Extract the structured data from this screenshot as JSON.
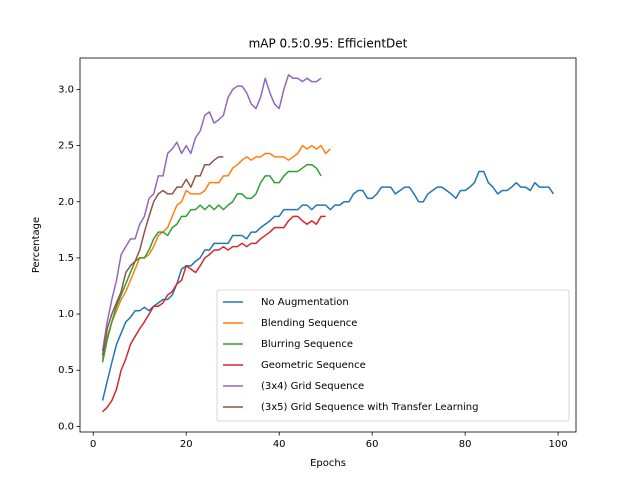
{
  "chart_data": {
    "type": "line",
    "title": "mAP 0.5:0.95: EfficientDet",
    "x_label": "Epochs",
    "y_label": "Percentage",
    "xlim": [
      -2.85,
      103.85
    ],
    "ylim": [
      -0.05,
      3.28
    ],
    "xticks": [
      0,
      20,
      40,
      60,
      80,
      100
    ],
    "yticks": [
      {
        "value": 0,
        "label": "0.0"
      },
      0.5,
      {
        "value": 1,
        "label": "1.0"
      },
      1.5,
      {
        "value": 2,
        "label": "2.0"
      },
      2.5,
      {
        "value": 3,
        "label": "3.0"
      }
    ],
    "legend": "lower right",
    "series": [
      {
        "name": "No Augmentation",
        "color": "#1f77b4",
        "x": [
          2,
          3,
          4,
          5,
          6,
          7,
          8,
          9,
          10,
          11,
          12,
          13,
          14,
          15,
          16,
          17,
          18,
          19,
          20,
          21,
          22,
          23,
          24,
          25,
          26,
          27,
          28,
          29,
          30,
          31,
          32,
          33,
          34,
          35,
          36,
          37,
          38,
          39,
          40,
          41,
          42,
          43,
          44,
          45,
          46,
          47,
          48,
          49,
          50,
          51,
          52,
          53,
          54,
          55,
          56,
          57,
          58,
          59,
          60,
          61,
          62,
          63,
          64,
          65,
          66,
          67,
          68,
          69,
          70,
          71,
          72,
          73,
          74,
          75,
          76,
          77,
          78,
          79,
          80,
          81,
          82,
          83,
          84,
          85,
          86,
          87,
          88,
          89,
          90,
          91,
          92,
          93,
          94,
          95,
          96,
          97,
          98,
          99
        ],
        "values": [
          0.23,
          0.4,
          0.57,
          0.73,
          0.83,
          0.93,
          0.97,
          1.03,
          1.03,
          1.06,
          1.03,
          1.07,
          1.1,
          1.13,
          1.13,
          1.17,
          1.27,
          1.4,
          1.43,
          1.43,
          1.47,
          1.5,
          1.57,
          1.57,
          1.63,
          1.63,
          1.63,
          1.63,
          1.7,
          1.7,
          1.7,
          1.67,
          1.73,
          1.73,
          1.77,
          1.8,
          1.83,
          1.87,
          1.87,
          1.93,
          1.93,
          1.93,
          1.93,
          1.97,
          1.97,
          1.93,
          1.97,
          1.97,
          1.97,
          1.93,
          1.97,
          1.97,
          2.0,
          2.0,
          2.07,
          2.1,
          2.1,
          2.03,
          2.03,
          2.07,
          2.13,
          2.13,
          2.13,
          2.07,
          2.1,
          2.13,
          2.13,
          2.07,
          2.0,
          2.0,
          2.07,
          2.1,
          2.13,
          2.13,
          2.1,
          2.07,
          2.03,
          2.1,
          2.1,
          2.13,
          2.17,
          2.27,
          2.27,
          2.17,
          2.13,
          2.07,
          2.1,
          2.1,
          2.13,
          2.17,
          2.13,
          2.13,
          2.1,
          2.17,
          2.13,
          2.13,
          2.13,
          2.07
        ]
      },
      {
        "name": "Blending Sequence",
        "color": "#ff7f0e",
        "x": [
          2,
          3,
          4,
          5,
          6,
          7,
          8,
          9,
          10,
          11,
          12,
          13,
          14,
          15,
          16,
          17,
          18,
          19,
          20,
          21,
          22,
          23,
          24,
          25,
          26,
          27,
          28,
          29,
          30,
          31,
          32,
          33,
          34,
          35,
          36,
          37,
          38,
          39,
          40,
          41,
          42,
          43,
          44,
          45,
          46,
          47,
          48,
          49,
          50,
          51
        ],
        "values": [
          0.6,
          0.8,
          0.93,
          1.03,
          1.13,
          1.2,
          1.3,
          1.4,
          1.5,
          1.5,
          1.53,
          1.6,
          1.7,
          1.73,
          1.77,
          1.87,
          1.97,
          2.0,
          2.1,
          2.07,
          2.07,
          2.07,
          2.1,
          2.17,
          2.17,
          2.17,
          2.23,
          2.23,
          2.3,
          2.33,
          2.37,
          2.4,
          2.37,
          2.4,
          2.4,
          2.43,
          2.43,
          2.4,
          2.4,
          2.4,
          2.37,
          2.4,
          2.43,
          2.5,
          2.47,
          2.5,
          2.47,
          2.5,
          2.43,
          2.47
        ]
      },
      {
        "name": "Blurring Sequence",
        "color": "#2ca02c",
        "x": [
          2,
          3,
          4,
          5,
          6,
          7,
          8,
          9,
          10,
          11,
          12,
          13,
          14,
          15,
          16,
          17,
          18,
          19,
          20,
          21,
          22,
          23,
          24,
          25,
          26,
          27,
          28,
          29,
          30,
          31,
          32,
          33,
          34,
          35,
          36,
          37,
          38,
          39,
          40,
          41,
          42,
          43,
          44,
          45,
          46,
          47,
          48,
          49
        ],
        "values": [
          0.57,
          0.77,
          0.93,
          1.07,
          1.17,
          1.27,
          1.37,
          1.47,
          1.5,
          1.5,
          1.57,
          1.67,
          1.73,
          1.73,
          1.7,
          1.77,
          1.8,
          1.87,
          1.87,
          1.93,
          1.93,
          1.97,
          1.93,
          1.97,
          1.93,
          1.97,
          1.93,
          1.97,
          2.0,
          2.07,
          2.07,
          2.03,
          2.03,
          2.07,
          2.17,
          2.23,
          2.23,
          2.17,
          2.17,
          2.23,
          2.27,
          2.27,
          2.27,
          2.3,
          2.33,
          2.33,
          2.3,
          2.23
        ]
      },
      {
        "name": "Geometric Sequence",
        "color": "#d62728",
        "x": [
          2,
          3,
          4,
          5,
          6,
          7,
          8,
          9,
          10,
          11,
          12,
          13,
          14,
          15,
          16,
          17,
          18,
          19,
          20,
          21,
          22,
          23,
          24,
          25,
          26,
          27,
          28,
          29,
          30,
          31,
          32,
          33,
          34,
          35,
          36,
          37,
          38,
          39,
          40,
          41,
          42,
          43,
          44,
          45,
          46,
          47,
          48,
          49,
          50
        ],
        "values": [
          0.13,
          0.17,
          0.23,
          0.33,
          0.5,
          0.6,
          0.73,
          0.8,
          0.87,
          0.93,
          1.0,
          1.07,
          1.07,
          1.1,
          1.17,
          1.2,
          1.27,
          1.3,
          1.43,
          1.4,
          1.37,
          1.43,
          1.5,
          1.53,
          1.57,
          1.57,
          1.6,
          1.57,
          1.6,
          1.6,
          1.63,
          1.6,
          1.63,
          1.63,
          1.67,
          1.7,
          1.73,
          1.77,
          1.77,
          1.77,
          1.83,
          1.87,
          1.87,
          1.83,
          1.8,
          1.83,
          1.8,
          1.87,
          1.87
        ]
      },
      {
        "name": "(3x4) Grid Sequence",
        "color": "#9467bd",
        "x": [
          2,
          3,
          4,
          5,
          6,
          7,
          8,
          9,
          10,
          11,
          12,
          13,
          14,
          15,
          16,
          17,
          18,
          19,
          20,
          21,
          22,
          23,
          24,
          25,
          26,
          27,
          28,
          29,
          30,
          31,
          32,
          33,
          34,
          35,
          36,
          37,
          38,
          39,
          40,
          41,
          42,
          43,
          44,
          45,
          46,
          47,
          48,
          49
        ],
        "values": [
          0.67,
          0.93,
          1.13,
          1.3,
          1.53,
          1.6,
          1.67,
          1.67,
          1.8,
          1.87,
          2.03,
          2.07,
          2.23,
          2.23,
          2.43,
          2.47,
          2.53,
          2.43,
          2.5,
          2.43,
          2.57,
          2.63,
          2.77,
          2.8,
          2.7,
          2.73,
          2.77,
          2.93,
          3.0,
          3.03,
          3.03,
          2.97,
          2.87,
          2.83,
          2.93,
          3.1,
          2.97,
          2.87,
          2.83,
          3.0,
          3.13,
          3.1,
          3.1,
          3.07,
          3.1,
          3.07,
          3.07,
          3.1
        ]
      },
      {
        "name": "(3x5) Grid Sequence with Transfer Learning",
        "color": "#8c564b",
        "x": [
          2,
          3,
          4,
          5,
          6,
          7,
          8,
          9,
          10,
          11,
          12,
          13,
          14,
          15,
          16,
          17,
          18,
          19,
          20,
          21,
          22,
          23,
          24,
          25,
          26,
          27,
          28
        ],
        "values": [
          0.63,
          0.87,
          1.0,
          1.1,
          1.2,
          1.37,
          1.43,
          1.47,
          1.57,
          1.73,
          1.87,
          2.0,
          2.07,
          2.1,
          2.07,
          2.07,
          2.13,
          2.13,
          2.2,
          2.13,
          2.23,
          2.23,
          2.33,
          2.33,
          2.37,
          2.4,
          2.4
        ]
      }
    ]
  }
}
